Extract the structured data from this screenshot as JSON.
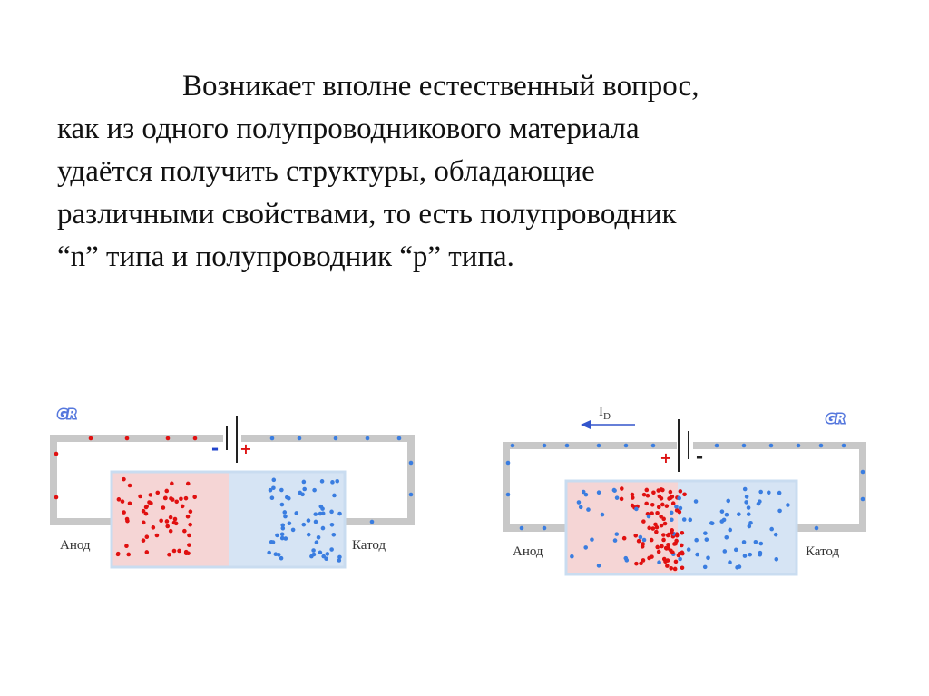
{
  "paragraph": {
    "lines": [
      "Возникает вполне естественный вопрос,",
      "как из одного полупроводникового материала",
      "удаётся получить структуры, обладающие",
      "различными свойствами, то есть полупроводник",
      "“n” типа и полупроводник “p” типа."
    ]
  },
  "diagrams": [
    {
      "logo": "GR",
      "minus": "-",
      "plus": "+",
      "anode": "Анод",
      "cathode": "Катод"
    },
    {
      "logo": "GR",
      "current": {
        "symbol": "I",
        "subscript": "D"
      },
      "plus": "+",
      "minus": "-",
      "anode": "Анод",
      "cathode": "Катод"
    }
  ]
}
